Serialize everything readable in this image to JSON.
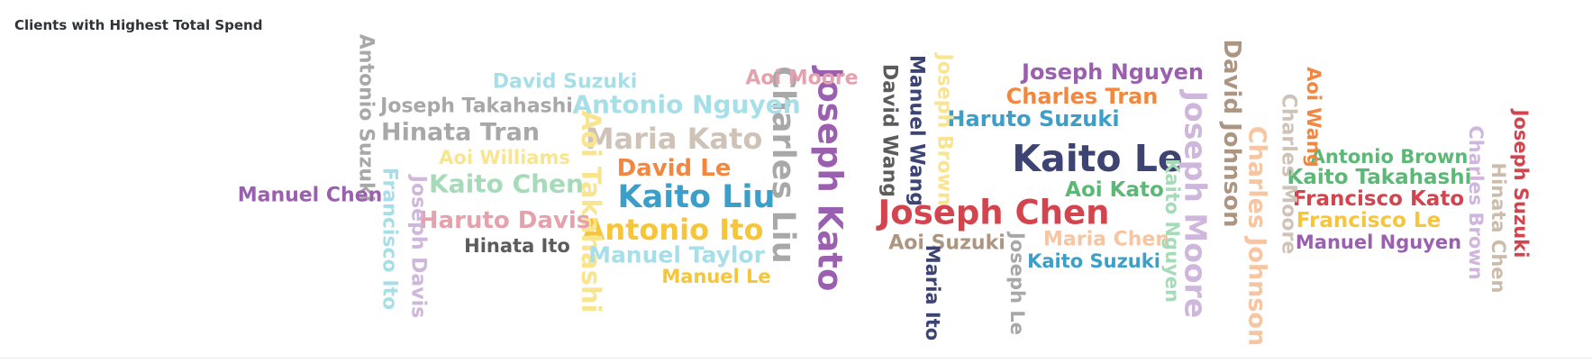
{
  "title": "Clients with Highest Total Spend",
  "palette": {
    "blue": "#3b9fc9",
    "orange": "#f2873f",
    "navy": "#3d4373",
    "brown": "#ac9581",
    "gold": "#f6c53a",
    "red": "#d2454f",
    "purple": "#9b5fb0",
    "green": "#5cb876",
    "cyan": "#a7dfe8",
    "gray": "#a8a8a8",
    "pink": "#e5a1ad",
    "mint": "#a5dbb8",
    "lavender": "#cfb6dd",
    "peach": "#f7c5a1",
    "lightgold": "#f9e58f",
    "darkgray": "#5c5c5c",
    "sand": "#cfc3b8",
    "lightbrown": "#cdbcaa",
    "lightgray": "#c4c4c4"
  },
  "chart_data": {
    "type": "wordcloud",
    "title": "Clients with Highest Total Spend",
    "words": [
      {
        "text": "Kaito Le",
        "color": "navy",
        "weight": 100,
        "rotate": false
      },
      {
        "text": "Joseph Chen",
        "color": "red",
        "weight": 88,
        "rotate": false
      },
      {
        "text": "Joseph Kato",
        "color": "purple",
        "weight": 86,
        "rotate": true
      },
      {
        "text": "Kaito Liu",
        "color": "blue",
        "weight": 82,
        "rotate": false
      },
      {
        "text": "Charles Liu",
        "color": "gray",
        "weight": 80,
        "rotate": true
      },
      {
        "text": "Joseph Moore",
        "color": "lavender",
        "weight": 76,
        "rotate": true
      },
      {
        "text": "Antonio Ito",
        "color": "gold",
        "weight": 72,
        "rotate": false
      },
      {
        "text": "Maria Kato",
        "color": "sand",
        "weight": 72,
        "rotate": false
      },
      {
        "text": "Aoi Takahashi",
        "color": "lightgold",
        "weight": 62,
        "rotate": true
      },
      {
        "text": "Antonio Nguyen",
        "color": "cyan",
        "weight": 60,
        "rotate": false
      },
      {
        "text": "Kaito Chen",
        "color": "mint",
        "weight": 58,
        "rotate": false
      },
      {
        "text": "Hinata Tran",
        "color": "gray",
        "weight": 56,
        "rotate": false
      },
      {
        "text": "Charles Johnson",
        "color": "peach",
        "weight": 56,
        "rotate": true
      },
      {
        "text": "David Johnson",
        "color": "brown",
        "weight": 54,
        "rotate": true
      },
      {
        "text": "Haruto Davis",
        "color": "pink",
        "weight": 54,
        "rotate": false
      },
      {
        "text": "David Le",
        "color": "orange",
        "weight": 54,
        "rotate": false
      },
      {
        "text": "Manuel Taylor",
        "color": "cyan",
        "weight": 50,
        "rotate": false
      },
      {
        "text": "Joseph Nguyen",
        "color": "purple",
        "weight": 46,
        "rotate": false
      },
      {
        "text": "Haruto Suzuki",
        "color": "blue",
        "weight": 46,
        "rotate": false
      },
      {
        "text": "Charles Tran",
        "color": "orange",
        "weight": 46,
        "rotate": false
      },
      {
        "text": "Kaito Takahashi",
        "color": "green",
        "weight": 44,
        "rotate": false
      },
      {
        "text": "Francisco Kato",
        "color": "red",
        "weight": 44,
        "rotate": false
      },
      {
        "text": "Francisco Le",
        "color": "gold",
        "weight": 44,
        "rotate": false
      },
      {
        "text": "Aoi Kato",
        "color": "green",
        "weight": 44,
        "rotate": false
      },
      {
        "text": "Manuel Wang",
        "color": "navy",
        "weight": 42,
        "rotate": true
      },
      {
        "text": "Joseph Brown",
        "color": "lightgold",
        "weight": 42,
        "rotate": true
      },
      {
        "text": "David Wang",
        "color": "darkgray",
        "weight": 42,
        "rotate": true
      },
      {
        "text": "Charles Moore",
        "color": "sand",
        "weight": 42,
        "rotate": true
      },
      {
        "text": "Aoi Suzuki",
        "color": "brown",
        "weight": 42,
        "rotate": false
      },
      {
        "text": "Maria Chen",
        "color": "peach",
        "weight": 42,
        "rotate": false
      },
      {
        "text": "Joseph Takahashi",
        "color": "gray",
        "weight": 40,
        "rotate": false
      },
      {
        "text": "Joseph Davis",
        "color": "lavender",
        "weight": 40,
        "rotate": true
      },
      {
        "text": "Francisco Ito",
        "color": "cyan",
        "weight": 40,
        "rotate": true
      },
      {
        "text": "Antonio Suzuki",
        "color": "gray",
        "weight": 40,
        "rotate": true
      },
      {
        "text": "Manuel Chen",
        "color": "purple",
        "weight": 40,
        "rotate": false
      },
      {
        "text": "David Suzuki",
        "color": "cyan",
        "weight": 40,
        "rotate": false
      },
      {
        "text": "Aoi Moore",
        "color": "pink",
        "weight": 40,
        "rotate": false
      },
      {
        "text": "Hinata Ito",
        "color": "darkgray",
        "weight": 38,
        "rotate": false
      },
      {
        "text": "Kaito Suzuki",
        "color": "blue",
        "weight": 38,
        "rotate": false
      },
      {
        "text": "Manuel Nguyen",
        "color": "purple",
        "weight": 38,
        "rotate": false
      },
      {
        "text": "Antonio Brown",
        "color": "green",
        "weight": 38,
        "rotate": false
      },
      {
        "text": "Manuel Le",
        "color": "gold",
        "weight": 38,
        "rotate": false
      },
      {
        "text": "Aoi Williams",
        "color": "lightgold",
        "weight": 38,
        "rotate": false
      },
      {
        "text": "Charles Brown",
        "color": "lavender",
        "weight": 38,
        "rotate": true
      },
      {
        "text": "Hinata Chen",
        "color": "lightbrown",
        "weight": 38,
        "rotate": true
      },
      {
        "text": "Joseph Suzuki",
        "color": "red",
        "weight": 36,
        "rotate": true
      },
      {
        "text": "Kaito Nguyen",
        "color": "mint",
        "weight": 36,
        "rotate": true
      },
      {
        "text": "Maria Ito",
        "color": "navy",
        "weight": 36,
        "rotate": true
      },
      {
        "text": "Joseph Le",
        "color": "gray",
        "weight": 36,
        "rotate": true
      },
      {
        "text": "Aoi Wang",
        "color": "orange",
        "weight": 36,
        "rotate": true
      }
    ]
  }
}
